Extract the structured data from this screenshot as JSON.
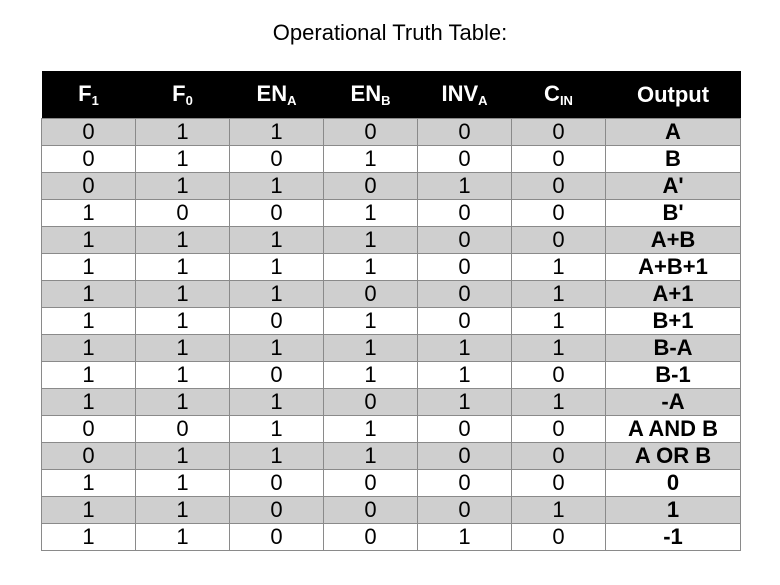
{
  "title": "Operational Truth Table:",
  "headers": [
    {
      "main": "F",
      "sub": "1"
    },
    {
      "main": "F",
      "sub": "0"
    },
    {
      "main": "EN",
      "sub": "A"
    },
    {
      "main": "EN",
      "sub": "B"
    },
    {
      "main": "INV",
      "sub": "A"
    },
    {
      "main": "C",
      "sub": "IN"
    },
    {
      "main": "Output",
      "sub": ""
    }
  ],
  "rows": [
    [
      "0",
      "1",
      "1",
      "0",
      "0",
      "0",
      "A"
    ],
    [
      "0",
      "1",
      "0",
      "1",
      "0",
      "0",
      "B"
    ],
    [
      "0",
      "1",
      "1",
      "0",
      "1",
      "0",
      "A'"
    ],
    [
      "1",
      "0",
      "0",
      "1",
      "0",
      "0",
      "B'"
    ],
    [
      "1",
      "1",
      "1",
      "1",
      "0",
      "0",
      "A+B"
    ],
    [
      "1",
      "1",
      "1",
      "1",
      "0",
      "1",
      "A+B+1"
    ],
    [
      "1",
      "1",
      "1",
      "0",
      "0",
      "1",
      "A+1"
    ],
    [
      "1",
      "1",
      "0",
      "1",
      "0",
      "1",
      "B+1"
    ],
    [
      "1",
      "1",
      "1",
      "1",
      "1",
      "1",
      "B-A"
    ],
    [
      "1",
      "1",
      "0",
      "1",
      "1",
      "0",
      "B-1"
    ],
    [
      "1",
      "1",
      "1",
      "0",
      "1",
      "1",
      "-A"
    ],
    [
      "0",
      "0",
      "1",
      "1",
      "0",
      "0",
      "A AND B"
    ],
    [
      "0",
      "1",
      "1",
      "1",
      "0",
      "0",
      "A OR B"
    ],
    [
      "1",
      "1",
      "0",
      "0",
      "0",
      "0",
      "0"
    ],
    [
      "1",
      "1",
      "0",
      "0",
      "0",
      "1",
      "1"
    ],
    [
      "1",
      "1",
      "0",
      "0",
      "1",
      "0",
      "-1"
    ]
  ],
  "colors": {
    "header_bg": "#000000",
    "header_text": "#ffffff",
    "shade": "#cfcfcf",
    "border": "#8a8a8a"
  }
}
